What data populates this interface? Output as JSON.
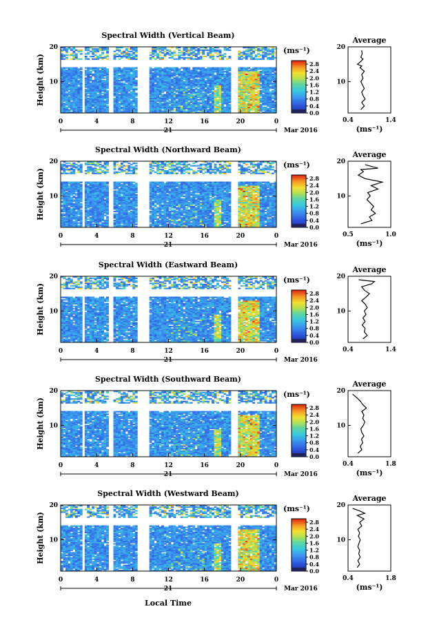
{
  "figure": {
    "date_label": "Mar 2016",
    "day_label": "21",
    "x_axis_label": "Local Time",
    "y_axis_label": "Height (km)",
    "colorbar_unit": "(ms⁻¹)",
    "average_title": "Average"
  },
  "chart_data": [
    {
      "type": "heatmap",
      "title": "Spectral Width (Vertical Beam)",
      "x_ticks": [
        "0",
        "4",
        "8",
        "12",
        "16",
        "20",
        "0"
      ],
      "y_ticks": [
        "20",
        "10"
      ],
      "xlim": [
        0,
        24
      ],
      "ylim": [
        1,
        20
      ],
      "color_scale": {
        "ticks": [
          "2.8",
          "2.4",
          "2.0",
          "1.6",
          "1.2",
          "0.8",
          "0.4",
          "0.0"
        ],
        "range": [
          0,
          3.0
        ]
      },
      "data_gaps_hours": [
        [
          2.5,
          2.8
        ],
        [
          5.4,
          5.9
        ],
        [
          8.5,
          9.9
        ],
        [
          17.8,
          18.0
        ],
        [
          18.9,
          19.6
        ]
      ],
      "upper_gap_km": [
        14.0,
        16.3
      ],
      "profile": {
        "title": "Average",
        "xlabel": "(ms⁻¹)",
        "x_ticks": [
          "0.4",
          "1.4"
        ],
        "xlim": [
          0.4,
          1.4
        ],
        "y_ticks": [
          "20",
          "10"
        ],
        "points": [
          [
            0.7,
            2
          ],
          [
            0.78,
            3
          ],
          [
            0.72,
            4
          ],
          [
            0.8,
            5
          ],
          [
            0.75,
            6
          ],
          [
            0.72,
            7
          ],
          [
            0.78,
            8
          ],
          [
            0.74,
            9
          ],
          [
            0.7,
            10
          ],
          [
            0.75,
            11
          ],
          [
            0.72,
            12
          ],
          [
            0.78,
            13
          ],
          [
            0.68,
            14
          ],
          [
            0.72,
            14.5
          ],
          [
            0.62,
            15
          ],
          [
            0.7,
            15.8
          ],
          [
            0.75,
            16.5
          ],
          [
            0.7,
            17
          ],
          [
            0.73,
            18
          ],
          [
            0.72,
            19
          ]
        ]
      }
    },
    {
      "type": "heatmap",
      "title": "Spectral Width (Northward Beam)",
      "x_ticks": [
        "0",
        "4",
        "8",
        "12",
        "16",
        "20",
        "0"
      ],
      "y_ticks": [
        "20",
        "10"
      ],
      "xlim": [
        0,
        24
      ],
      "ylim": [
        1,
        20
      ],
      "color_scale": {
        "ticks": [
          "2.8",
          "2.4",
          "2.0",
          "1.6",
          "1.2",
          "0.8",
          "0.4",
          "0.0"
        ],
        "range": [
          0,
          3.0
        ]
      },
      "data_gaps_hours": [
        [
          2.5,
          2.8
        ],
        [
          5.4,
          5.9
        ],
        [
          8.5,
          9.9
        ],
        [
          17.8,
          18.0
        ],
        [
          18.9,
          19.6
        ]
      ],
      "upper_gap_km": [
        14.0,
        16.3
      ],
      "profile": {
        "title": "Average",
        "xlabel": "(ms⁻¹)",
        "x_ticks": [
          "0.5",
          "1.0"
        ],
        "xlim": [
          0.5,
          1.0
        ],
        "y_ticks": [
          "20",
          "10"
        ],
        "points": [
          [
            0.65,
            2
          ],
          [
            0.78,
            3
          ],
          [
            0.75,
            4
          ],
          [
            0.82,
            5
          ],
          [
            0.77,
            6
          ],
          [
            0.8,
            7
          ],
          [
            0.76,
            8
          ],
          [
            0.72,
            9
          ],
          [
            0.76,
            10
          ],
          [
            0.73,
            11
          ],
          [
            0.85,
            12
          ],
          [
            0.77,
            13
          ],
          [
            0.9,
            14
          ],
          [
            0.7,
            15
          ],
          [
            0.62,
            16
          ],
          [
            0.68,
            17
          ],
          [
            0.65,
            17.6
          ],
          [
            0.85,
            18
          ],
          [
            0.7,
            19
          ]
        ]
      }
    },
    {
      "type": "heatmap",
      "title": "Spectral Width (Eastward Beam)",
      "x_ticks": [
        "0",
        "4",
        "8",
        "12",
        "16",
        "20",
        "0"
      ],
      "y_ticks": [
        "20",
        "10"
      ],
      "xlim": [
        0,
        24
      ],
      "ylim": [
        1,
        20
      ],
      "color_scale": {
        "ticks": [
          "2.8",
          "2.4",
          "2.0",
          "1.6",
          "1.2",
          "0.8",
          "0.4",
          "0.0"
        ],
        "range": [
          0,
          3.0
        ]
      },
      "data_gaps_hours": [
        [
          2.5,
          2.8
        ],
        [
          5.4,
          5.9
        ],
        [
          8.5,
          9.9
        ],
        [
          17.8,
          18.0
        ],
        [
          18.9,
          19.6
        ]
      ],
      "upper_gap_km": [
        14.0,
        16.3
      ],
      "profile": {
        "title": "Average",
        "xlabel": "",
        "x_ticks": [
          "0.4",
          "1.4"
        ],
        "xlim": [
          0.4,
          1.4
        ],
        "y_ticks": [
          "20",
          "10"
        ],
        "points": [
          [
            0.75,
            2
          ],
          [
            0.85,
            3
          ],
          [
            0.78,
            4
          ],
          [
            0.8,
            5
          ],
          [
            0.73,
            6
          ],
          [
            0.8,
            7
          ],
          [
            0.75,
            8
          ],
          [
            0.82,
            9
          ],
          [
            0.78,
            10
          ],
          [
            0.85,
            11
          ],
          [
            0.8,
            12
          ],
          [
            0.72,
            13
          ],
          [
            0.82,
            14
          ],
          [
            0.9,
            15
          ],
          [
            0.78,
            16
          ],
          [
            0.72,
            17
          ],
          [
            0.95,
            17.8
          ],
          [
            1.02,
            18.5
          ],
          [
            0.65,
            19
          ]
        ]
      }
    },
    {
      "type": "heatmap",
      "title": "Spectral Width (Southward Beam)",
      "x_ticks": [
        "0",
        "4",
        "8",
        "12",
        "16",
        "20",
        "0"
      ],
      "y_ticks": [
        "20",
        "10"
      ],
      "xlim": [
        0,
        24
      ],
      "ylim": [
        1,
        20
      ],
      "color_scale": {
        "ticks": [
          "2.8",
          "2.4",
          "2.0",
          "1.6",
          "1.2",
          "0.8",
          "0.4",
          "0.0"
        ],
        "range": [
          0,
          3.0
        ]
      },
      "data_gaps_hours": [
        [
          2.5,
          2.8
        ],
        [
          5.4,
          5.9
        ],
        [
          8.5,
          9.9
        ],
        [
          17.8,
          18.0
        ],
        [
          18.9,
          19.6
        ]
      ],
      "upper_gap_km": [
        14.0,
        16.3
      ],
      "profile": {
        "title": "Average",
        "xlabel": "(ms⁻¹)",
        "x_ticks": [
          "0.4",
          "1.8"
        ],
        "xlim": [
          0.4,
          1.8
        ],
        "y_ticks": [
          "20",
          "10"
        ],
        "points": [
          [
            0.72,
            2
          ],
          [
            0.85,
            3
          ],
          [
            0.8,
            4
          ],
          [
            0.88,
            5
          ],
          [
            0.84,
            6
          ],
          [
            0.92,
            7
          ],
          [
            0.85,
            8
          ],
          [
            0.82,
            9
          ],
          [
            0.9,
            10
          ],
          [
            0.95,
            11
          ],
          [
            0.88,
            12
          ],
          [
            0.92,
            13
          ],
          [
            0.85,
            14
          ],
          [
            1.0,
            15
          ],
          [
            0.88,
            16
          ],
          [
            0.8,
            17
          ],
          [
            0.68,
            18
          ],
          [
            0.55,
            19
          ]
        ]
      }
    },
    {
      "type": "heatmap",
      "title": "Spectral Width (Westward Beam)",
      "x_ticks": [
        "0",
        "4",
        "8",
        "12",
        "16",
        "20",
        "0"
      ],
      "y_ticks": [
        "20",
        "10"
      ],
      "xlim": [
        0,
        24
      ],
      "ylim": [
        1,
        20
      ],
      "color_scale": {
        "ticks": [
          "2.8",
          "2.4",
          "2.0",
          "1.6",
          "1.2",
          "0.8",
          "0.4",
          "0.0"
        ],
        "range": [
          0,
          3.0
        ]
      },
      "data_gaps_hours": [
        [
          2.5,
          2.8
        ],
        [
          5.4,
          5.9
        ],
        [
          8.5,
          9.9
        ],
        [
          17.8,
          18.0
        ],
        [
          18.9,
          19.6
        ]
      ],
      "upper_gap_km": [
        14.0,
        16.3
      ],
      "profile": {
        "title": "Average",
        "xlabel": "(ms⁻¹)",
        "x_ticks": [
          "0.4",
          "1.8"
        ],
        "xlim": [
          0.4,
          1.8
        ],
        "y_ticks": [
          "20",
          "10"
        ],
        "points": [
          [
            0.7,
            2
          ],
          [
            0.78,
            3
          ],
          [
            0.72,
            4
          ],
          [
            0.8,
            5
          ],
          [
            0.75,
            6
          ],
          [
            0.78,
            7
          ],
          [
            0.72,
            8
          ],
          [
            0.76,
            9
          ],
          [
            0.8,
            10
          ],
          [
            0.74,
            11
          ],
          [
            0.78,
            12
          ],
          [
            0.72,
            13
          ],
          [
            0.85,
            14
          ],
          [
            0.78,
            15
          ],
          [
            0.92,
            16
          ],
          [
            0.7,
            17
          ],
          [
            0.95,
            17.6
          ],
          [
            0.75,
            18.4
          ],
          [
            0.55,
            19
          ]
        ]
      }
    }
  ]
}
